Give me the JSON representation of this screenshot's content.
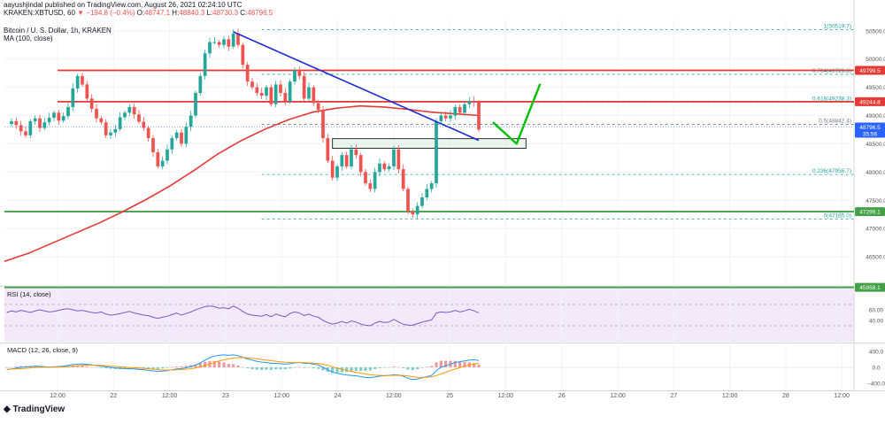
{
  "header": {
    "publisher_line": "aayushjindal published on TradingView.com, August 26, 2021 02:24:10 UTC",
    "symbol_line": "KRAKEN:XBTUSD, 60",
    "ohlc_change": "▼ −194.8 (−0.4%)",
    "ohlc": [
      {
        "k": "O:",
        "v": "48747.1"
      },
      {
        "k": "H:",
        "v": "48840.3"
      },
      {
        "k": "L:",
        "v": "48730.3"
      },
      {
        "k": "C:",
        "v": "48796.5"
      }
    ],
    "pane_title": "Bitcoin / U. S. Dollar, 1h, KRAKEN",
    "ma_label": "MA (100, close)"
  },
  "footer": {
    "brand": "TradingView"
  },
  "chart_data": [
    {
      "type": "candlestick",
      "title": "Bitcoin / U. S. Dollar, 1h, KRAKEN",
      "ylim": [
        46000,
        50700
      ],
      "y_ticks": [
        "50500.0",
        "50000.0",
        "49500.0",
        "49000.0",
        "48500.0",
        "48000.0",
        "47500.0",
        "47000.0",
        "46500.0",
        "46000.0"
      ],
      "x_ticks": [
        "12:00",
        "22",
        "12:00",
        "23",
        "12:00",
        "24",
        "12:00",
        "25",
        "12:00",
        "26",
        "12:00",
        "27",
        "12:00",
        "28",
        "12:00"
      ],
      "price_series": [
        48850,
        48900,
        48830,
        48720,
        48650,
        48900,
        48950,
        48780,
        48880,
        48960,
        49050,
        48910,
        48990,
        49150,
        49480,
        49700,
        49550,
        49300,
        49120,
        48950,
        48880,
        48650,
        48700,
        48760,
        48970,
        49050,
        49150,
        49020,
        48890,
        48780,
        48600,
        48350,
        48100,
        48200,
        48400,
        48600,
        48700,
        48500,
        48800,
        49000,
        49400,
        49700,
        50100,
        50300,
        50300,
        50250,
        50350,
        50220,
        50450,
        50250,
        49900,
        49600,
        49500,
        49400,
        49350,
        49500,
        49200,
        49550,
        49400,
        49250,
        49600,
        49800,
        49700,
        49300,
        49500,
        49220,
        49100,
        48600,
        48200,
        47900,
        48100,
        48300,
        48100,
        48400,
        48300,
        48000,
        47800,
        47700,
        48000,
        48150,
        48050,
        48100,
        48400,
        48050,
        47700,
        47300,
        47250,
        47400,
        47550,
        47700,
        47800,
        48900,
        49000,
        48950,
        49000,
        49150,
        49050,
        49200,
        49250,
        49230,
        48750
      ],
      "candle_count": 101,
      "ma_label": "MA (100, close)",
      "ma_values": [
        46420,
        46560,
        46740,
        46920,
        47100,
        47300,
        47520,
        47760,
        48030,
        48320,
        48560,
        48760,
        48930,
        49060,
        49130,
        49170,
        49150,
        49110,
        49060,
        49030,
        49000
      ],
      "current_price": "48796.5",
      "current_price_time": "35:56",
      "horizontal_levels": [
        {
          "price": 49799.5,
          "label": "49799.5",
          "color": "#e53935"
        },
        {
          "price": 49244.8,
          "label": "49244.8",
          "color": "#e53935"
        },
        {
          "price": 47299.1,
          "label": "47299.1",
          "color": "#43a047"
        },
        {
          "price": 45958.1,
          "label": "45958.1",
          "color": "#43a047"
        }
      ],
      "fibonacci_levels": [
        {
          "ratio": "1",
          "price": "50519.7",
          "value": 50519.7
        },
        {
          "ratio": "0.764",
          "price": "49729.8",
          "value": 49729.8
        },
        {
          "ratio": "0.618",
          "price": "49238.3",
          "value": 49238.3
        },
        {
          "ratio": "0.5",
          "price": "48842.4",
          "value": 48842.4
        },
        {
          "ratio": "0.236",
          "price": "47956.7",
          "value": 47956.7
        },
        {
          "ratio": "0",
          "price": "47165.0",
          "value": 47165.0
        }
      ],
      "trendline": {
        "from_candle": 48,
        "from_price": 50480,
        "to_candle": 100,
        "to_price": 48560,
        "color": "#1e2bd1"
      },
      "support_zone": {
        "from_candle": 69,
        "to_candle": 110,
        "low": 48420,
        "high": 48590
      },
      "projection": [
        {
          "candle": 103,
          "price": 48880
        },
        {
          "candle": 108,
          "price": 48500
        },
        {
          "candle": 113,
          "price": 49560
        }
      ],
      "colors": {
        "up": "#26a69a",
        "down": "#ef5350",
        "ma": "#e53935",
        "fib": "#26a69a"
      }
    },
    {
      "type": "line",
      "title": "RSI (14, close)",
      "ylim": [
        0,
        100
      ],
      "y_ticks": [
        "60.00",
        "40.00"
      ],
      "band": [
        30,
        70
      ],
      "values": [
        55,
        58,
        56,
        59,
        57,
        55,
        58,
        60,
        58,
        56,
        57,
        59,
        61,
        62,
        60,
        58,
        59,
        57,
        55,
        54,
        56,
        52,
        50,
        51,
        53,
        55,
        57,
        54,
        52,
        50,
        49,
        46,
        44,
        46,
        48,
        51,
        54,
        50,
        53,
        56,
        60,
        63,
        66,
        67,
        66,
        63,
        64,
        62,
        67,
        63,
        57,
        52,
        50,
        49,
        48,
        51,
        47,
        52,
        49,
        47,
        53,
        56,
        54,
        49,
        52,
        48,
        46,
        40,
        36,
        33,
        35,
        38,
        35,
        39,
        37,
        33,
        31,
        30,
        35,
        38,
        36,
        37,
        42,
        37,
        33,
        31,
        31,
        34,
        37,
        39,
        41,
        54,
        56,
        55,
        56,
        59,
        56,
        58,
        61,
        58,
        54
      ],
      "color": "#7e57c2"
    },
    {
      "type": "line",
      "title": "MACD (12, 26, close, 9)",
      "y_ticks": [
        "400.0",
        "0.0",
        "−400.0"
      ],
      "ylim": [
        -550,
        550
      ],
      "macd": [
        -60,
        -40,
        -20,
        0,
        10,
        20,
        30,
        25,
        15,
        5,
        10,
        20,
        30,
        50,
        70,
        80,
        85,
        75,
        60,
        45,
        30,
        15,
        0,
        -15,
        -25,
        -30,
        -35,
        -40,
        -50,
        -60,
        -75,
        -90,
        -100,
        -95,
        -80,
        -60,
        -40,
        -30,
        -10,
        20,
        60,
        110,
        180,
        240,
        280,
        300,
        310,
        300,
        310,
        290,
        250,
        210,
        180,
        150,
        130,
        120,
        100,
        100,
        90,
        80,
        90,
        110,
        120,
        100,
        100,
        80,
        60,
        0,
        -60,
        -120,
        -150,
        -170,
        -190,
        -200,
        -210,
        -230,
        -250,
        -260,
        -240,
        -220,
        -210,
        -200,
        -180,
        -190,
        -220,
        -270,
        -300,
        -290,
        -260,
        -230,
        -200,
        -80,
        0,
        40,
        80,
        120,
        140,
        160,
        180,
        190,
        170
      ],
      "signal": [
        -50,
        -45,
        -40,
        -32,
        -24,
        -15,
        -6,
        0,
        3,
        3,
        4,
        7,
        12,
        20,
        30,
        40,
        49,
        54,
        55,
        53,
        48,
        42,
        34,
        24,
        14,
        5,
        -3,
        -10,
        -18,
        -26,
        -36,
        -47,
        -58,
        -65,
        -68,
        -66,
        -61,
        -55,
        -46,
        -33,
        -14,
        11,
        45,
        84,
        123,
        158,
        188,
        211,
        230,
        242,
        244,
        237,
        226,
        211,
        195,
        180,
        164,
        151,
        139,
        127,
        120,
        118,
        118,
        114,
        111,
        105,
        96,
        77,
        50,
        16,
        -17,
        -48,
        -77,
        -101,
        -123,
        -144,
        -166,
        -185,
        -196,
        -201,
        -203,
        -203,
        -198,
        -197,
        -201,
        -215,
        -232,
        -244,
        -247,
        -244,
        -235,
        -204,
        -163,
        -122,
        -82,
        -42,
        -6,
        27,
        58,
        84,
        101
      ],
      "histogram": [
        -10,
        5,
        20,
        32,
        34,
        35,
        36,
        25,
        12,
        2,
        6,
        13,
        18,
        30,
        40,
        40,
        36,
        21,
        5,
        -8,
        -18,
        -27,
        -34,
        -39,
        -39,
        -35,
        -32,
        -30,
        -32,
        -34,
        -39,
        -43,
        -42,
        -30,
        -12,
        6,
        21,
        25,
        36,
        53,
        74,
        99,
        135,
        156,
        157,
        142,
        122,
        89,
        80,
        48,
        6,
        -27,
        -46,
        -61,
        -65,
        -60,
        -64,
        -51,
        -49,
        -47,
        -30,
        -8,
        2,
        -14,
        -11,
        -25,
        -36,
        -77,
        -110,
        -136,
        -133,
        -122,
        -113,
        -99,
        -87,
        -86,
        -84,
        -75,
        -44,
        -19,
        -7,
        3,
        18,
        7,
        -19,
        -55,
        -68,
        -46,
        -13,
        14,
        35,
        124,
        163,
        162,
        162,
        162,
        146,
        133,
        122,
        106,
        69
      ],
      "colors": {
        "macd": "#2196f3",
        "signal": "#ff9800",
        "hist_up": "#ef9a9a",
        "hist_down": "#80cbc4"
      }
    }
  ]
}
